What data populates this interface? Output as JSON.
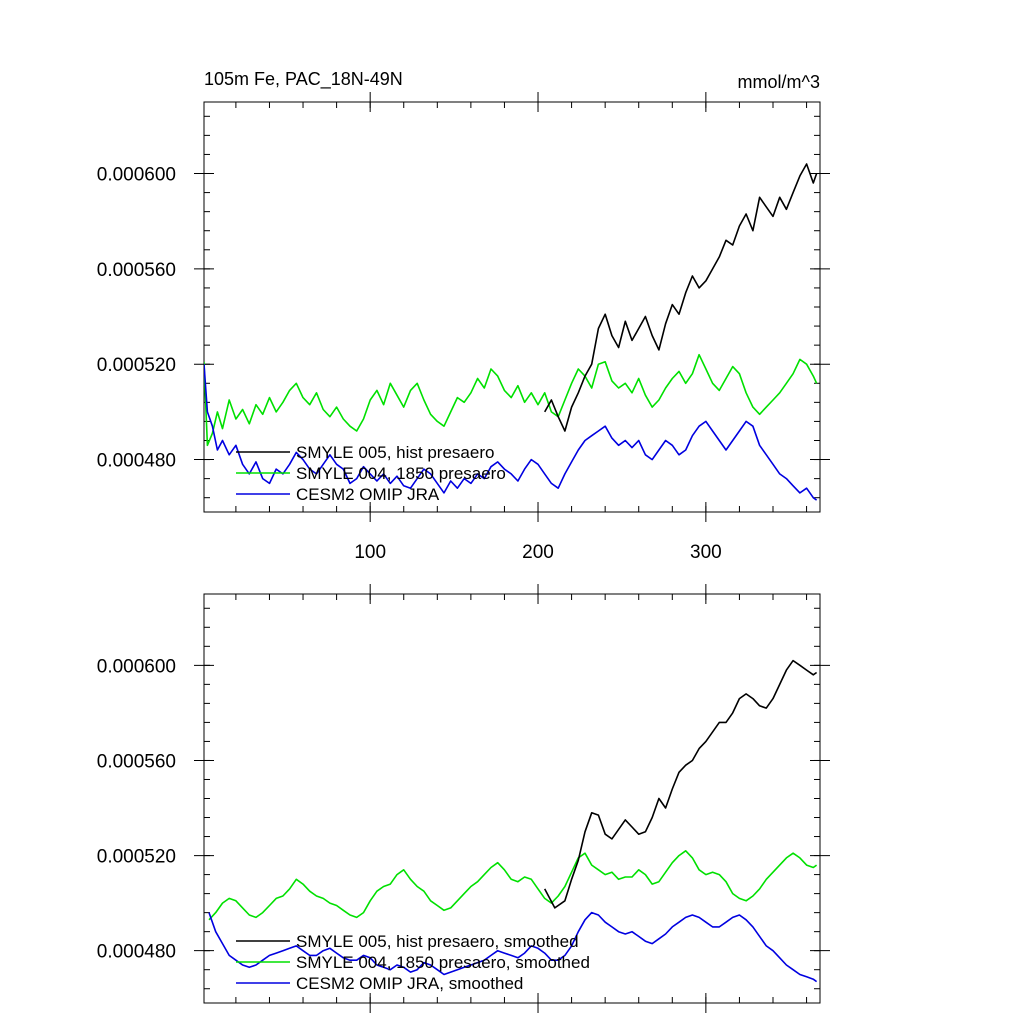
{
  "chart_data": [
    {
      "type": "line",
      "title": "105m Fe, PAC_18N-49N",
      "units": "mmol/m^3",
      "xlim": [
        1,
        368
      ],
      "ylim": [
        0.000458,
        0.00063
      ],
      "xticks": [
        100,
        200,
        300
      ],
      "xtick_labels": [
        "100",
        "200",
        "300"
      ],
      "yticks": [
        0.00048,
        0.00052,
        0.00056,
        0.0006
      ],
      "ytick_labels": [
        "0.000480",
        "0.000520",
        "0.000560",
        "0.000600"
      ],
      "legend_placement": "bottom-left",
      "series": [
        {
          "name": "SMYLE 005, hist presaero",
          "color": "#000000",
          "x": [
            204,
            208,
            212,
            216,
            220,
            224,
            228,
            232,
            236,
            240,
            244,
            248,
            252,
            256,
            260,
            264,
            268,
            272,
            276,
            280,
            284,
            288,
            292,
            296,
            300,
            304,
            308,
            312,
            316,
            320,
            324,
            328,
            332,
            336,
            340,
            344,
            348,
            352,
            356,
            360,
            364,
            366
          ],
          "values": [
            0.0005,
            0.000505,
            0.000498,
            0.000492,
            0.000502,
            0.000508,
            0.000515,
            0.00052,
            0.000535,
            0.000541,
            0.000532,
            0.000527,
            0.000538,
            0.00053,
            0.000535,
            0.00054,
            0.000532,
            0.000526,
            0.000537,
            0.000545,
            0.000541,
            0.00055,
            0.000557,
            0.000552,
            0.000555,
            0.00056,
            0.000565,
            0.000572,
            0.00057,
            0.000578,
            0.000583,
            0.000576,
            0.00059,
            0.000586,
            0.000582,
            0.00059,
            0.000585,
            0.000592,
            0.000599,
            0.000604,
            0.000596,
            0.0006
          ]
        },
        {
          "name": "SMYLE 004, 1850 presaero",
          "color": "#00e000",
          "x": [
            1,
            3,
            6,
            9,
            12,
            16,
            20,
            24,
            28,
            32,
            36,
            40,
            44,
            48,
            52,
            56,
            60,
            64,
            68,
            72,
            76,
            80,
            84,
            88,
            92,
            96,
            100,
            104,
            108,
            112,
            116,
            120,
            124,
            128,
            132,
            136,
            140,
            144,
            148,
            152,
            156,
            160,
            164,
            168,
            172,
            176,
            180,
            184,
            188,
            192,
            196,
            200,
            204,
            208,
            212,
            216,
            220,
            224,
            228,
            232,
            236,
            240,
            244,
            248,
            252,
            256,
            260,
            264,
            268,
            272,
            276,
            280,
            284,
            288,
            292,
            296,
            300,
            304,
            308,
            312,
            316,
            320,
            324,
            328,
            332,
            336,
            340,
            344,
            348,
            352,
            356,
            360,
            364,
            366
          ],
          "values": [
            0.000521,
            0.000486,
            0.000491,
            0.0005,
            0.000493,
            0.000505,
            0.000497,
            0.000501,
            0.000495,
            0.000503,
            0.000499,
            0.000506,
            0.0005,
            0.000504,
            0.000509,
            0.000512,
            0.000506,
            0.000503,
            0.000508,
            0.000501,
            0.000498,
            0.000502,
            0.000497,
            0.000494,
            0.000492,
            0.000497,
            0.000505,
            0.000509,
            0.000503,
            0.000512,
            0.000507,
            0.000502,
            0.000509,
            0.000512,
            0.000505,
            0.000499,
            0.000496,
            0.000494,
            0.0005,
            0.000506,
            0.000504,
            0.000508,
            0.000514,
            0.00051,
            0.000518,
            0.000515,
            0.000509,
            0.000506,
            0.000511,
            0.000504,
            0.000508,
            0.000503,
            0.000508,
            0.0005,
            0.000498,
            0.000505,
            0.000512,
            0.000518,
            0.000515,
            0.00051,
            0.00052,
            0.000521,
            0.000513,
            0.00051,
            0.000512,
            0.000508,
            0.000514,
            0.000507,
            0.000502,
            0.000505,
            0.00051,
            0.000514,
            0.000517,
            0.000512,
            0.000516,
            0.000524,
            0.000518,
            0.000512,
            0.000509,
            0.000514,
            0.000519,
            0.000516,
            0.000508,
            0.000502,
            0.000499,
            0.000502,
            0.000505,
            0.000508,
            0.000512,
            0.000516,
            0.000522,
            0.00052,
            0.000515,
            0.000512
          ]
        },
        {
          "name": "CESM2 OMIP JRA",
          "color": "#0000e0",
          "x": [
            1,
            3,
            6,
            9,
            12,
            16,
            20,
            24,
            28,
            32,
            36,
            40,
            44,
            48,
            52,
            56,
            60,
            64,
            68,
            72,
            76,
            80,
            84,
            88,
            92,
            96,
            100,
            104,
            108,
            112,
            116,
            120,
            124,
            128,
            132,
            136,
            140,
            144,
            148,
            152,
            156,
            160,
            164,
            168,
            172,
            176,
            180,
            184,
            188,
            192,
            196,
            200,
            204,
            208,
            212,
            216,
            220,
            224,
            228,
            232,
            236,
            240,
            244,
            248,
            252,
            256,
            260,
            264,
            268,
            272,
            276,
            280,
            284,
            288,
            292,
            296,
            300,
            304,
            308,
            312,
            316,
            320,
            324,
            328,
            332,
            336,
            340,
            344,
            348,
            352,
            356,
            360,
            364,
            366
          ],
          "values": [
            0.00052,
            0.0005,
            0.000494,
            0.000484,
            0.000488,
            0.000482,
            0.000486,
            0.000478,
            0.000474,
            0.000479,
            0.000472,
            0.00047,
            0.000476,
            0.000474,
            0.000478,
            0.000483,
            0.00048,
            0.000476,
            0.000474,
            0.000478,
            0.000482,
            0.000478,
            0.000476,
            0.00047,
            0.000472,
            0.000477,
            0.000474,
            0.000471,
            0.000474,
            0.00047,
            0.000473,
            0.000469,
            0.000468,
            0.000472,
            0.000476,
            0.000474,
            0.00047,
            0.000466,
            0.000471,
            0.000468,
            0.000472,
            0.00047,
            0.000474,
            0.000472,
            0.000477,
            0.000479,
            0.000476,
            0.000474,
            0.000471,
            0.000476,
            0.00048,
            0.000478,
            0.000474,
            0.00047,
            0.000468,
            0.000474,
            0.000479,
            0.000484,
            0.000488,
            0.00049,
            0.000492,
            0.000494,
            0.000489,
            0.000486,
            0.000488,
            0.000485,
            0.000488,
            0.000482,
            0.00048,
            0.000484,
            0.000488,
            0.000486,
            0.000482,
            0.000484,
            0.00049,
            0.000494,
            0.000496,
            0.000492,
            0.000488,
            0.000484,
            0.000488,
            0.000492,
            0.000496,
            0.000494,
            0.000486,
            0.000482,
            0.000478,
            0.000474,
            0.000472,
            0.000469,
            0.000466,
            0.000468,
            0.000464,
            0.000463
          ]
        }
      ]
    },
    {
      "type": "line",
      "title": "",
      "units": "",
      "xlim": [
        1,
        368
      ],
      "ylim": [
        0.000458,
        0.00063
      ],
      "xticks": [
        100,
        200,
        300
      ],
      "xtick_labels": [],
      "yticks": [
        0.00048,
        0.00052,
        0.00056,
        0.0006
      ],
      "ytick_labels": [
        "0.000480",
        "0.000520",
        "0.000560",
        "0.000600"
      ],
      "legend_placement": "bottom-left",
      "series": [
        {
          "name": "SMYLE 005, hist presaero, smoothed",
          "color": "#000000",
          "x": [
            204,
            210,
            216,
            220,
            224,
            228,
            232,
            236,
            240,
            244,
            248,
            252,
            256,
            260,
            264,
            268,
            272,
            276,
            280,
            284,
            288,
            292,
            296,
            300,
            304,
            308,
            312,
            316,
            320,
            324,
            328,
            332,
            336,
            340,
            344,
            348,
            352,
            356,
            360,
            364,
            366
          ],
          "values": [
            0.000506,
            0.000498,
            0.000501,
            0.00051,
            0.000518,
            0.00053,
            0.000538,
            0.000537,
            0.000529,
            0.000527,
            0.000531,
            0.000535,
            0.000532,
            0.000529,
            0.00053,
            0.000536,
            0.000544,
            0.00054,
            0.000548,
            0.000555,
            0.000558,
            0.00056,
            0.000565,
            0.000568,
            0.000572,
            0.000576,
            0.000576,
            0.00058,
            0.000586,
            0.000588,
            0.000586,
            0.000583,
            0.000582,
            0.000586,
            0.000592,
            0.000598,
            0.000602,
            0.0006,
            0.000598,
            0.000596,
            0.000597
          ]
        },
        {
          "name": "SMYLE 004, 1850 presaero, smoothed",
          "color": "#00e000",
          "x": [
            4,
            8,
            12,
            16,
            20,
            24,
            28,
            32,
            36,
            40,
            44,
            48,
            52,
            56,
            60,
            64,
            68,
            72,
            76,
            80,
            84,
            88,
            92,
            96,
            100,
            104,
            108,
            112,
            116,
            120,
            124,
            128,
            132,
            136,
            140,
            144,
            148,
            152,
            156,
            160,
            164,
            168,
            172,
            176,
            180,
            184,
            188,
            192,
            196,
            200,
            204,
            208,
            212,
            216,
            220,
            224,
            228,
            232,
            236,
            240,
            244,
            248,
            252,
            256,
            260,
            264,
            268,
            272,
            276,
            280,
            284,
            288,
            292,
            296,
            300,
            304,
            308,
            312,
            316,
            320,
            324,
            328,
            332,
            336,
            340,
            344,
            348,
            352,
            356,
            360,
            364,
            366
          ],
          "values": [
            0.000493,
            0.000496,
            0.0005,
            0.000502,
            0.000501,
            0.000498,
            0.000495,
            0.000494,
            0.000496,
            0.000499,
            0.000502,
            0.000503,
            0.000506,
            0.00051,
            0.000508,
            0.000505,
            0.000503,
            0.000502,
            0.0005,
            0.000499,
            0.000497,
            0.000495,
            0.000494,
            0.000496,
            0.000501,
            0.000505,
            0.000507,
            0.000508,
            0.000512,
            0.000514,
            0.00051,
            0.000507,
            0.000505,
            0.000501,
            0.000499,
            0.000497,
            0.000498,
            0.000501,
            0.000504,
            0.000507,
            0.000509,
            0.000512,
            0.000515,
            0.000517,
            0.000514,
            0.00051,
            0.000509,
            0.000511,
            0.00051,
            0.000506,
            0.000502,
            0.0005,
            0.000503,
            0.000507,
            0.000513,
            0.000519,
            0.000521,
            0.000516,
            0.000514,
            0.000512,
            0.000513,
            0.00051,
            0.000511,
            0.000511,
            0.000514,
            0.000512,
            0.000508,
            0.000509,
            0.000513,
            0.000517,
            0.00052,
            0.000522,
            0.000519,
            0.000514,
            0.000512,
            0.000513,
            0.000512,
            0.000509,
            0.000504,
            0.000502,
            0.000501,
            0.000503,
            0.000506,
            0.00051,
            0.000513,
            0.000516,
            0.000519,
            0.000521,
            0.000519,
            0.000516,
            0.000515,
            0.000516
          ]
        },
        {
          "name": "CESM2 OMIP JRA, smoothed",
          "color": "#0000e0",
          "x": [
            4,
            8,
            12,
            16,
            20,
            24,
            28,
            32,
            36,
            40,
            44,
            48,
            52,
            56,
            60,
            64,
            68,
            72,
            76,
            80,
            84,
            88,
            92,
            96,
            100,
            104,
            108,
            112,
            116,
            120,
            124,
            128,
            132,
            136,
            140,
            144,
            148,
            152,
            156,
            160,
            164,
            168,
            172,
            176,
            180,
            184,
            188,
            192,
            196,
            200,
            204,
            208,
            212,
            216,
            220,
            224,
            228,
            232,
            236,
            240,
            244,
            248,
            252,
            256,
            260,
            264,
            268,
            272,
            276,
            280,
            284,
            288,
            292,
            296,
            300,
            304,
            308,
            312,
            316,
            320,
            324,
            328,
            332,
            336,
            340,
            344,
            348,
            352,
            356,
            360,
            364,
            366
          ],
          "values": [
            0.000496,
            0.000488,
            0.000483,
            0.000478,
            0.000476,
            0.000474,
            0.000473,
            0.000474,
            0.000476,
            0.000478,
            0.000479,
            0.00048,
            0.000481,
            0.000482,
            0.00048,
            0.000478,
            0.000478,
            0.00048,
            0.000481,
            0.000479,
            0.000477,
            0.000476,
            0.000476,
            0.000478,
            0.000477,
            0.000474,
            0.000473,
            0.000472,
            0.000474,
            0.000473,
            0.000471,
            0.000472,
            0.000475,
            0.000474,
            0.000472,
            0.00047,
            0.000471,
            0.000472,
            0.000473,
            0.000474,
            0.000475,
            0.000476,
            0.000478,
            0.00048,
            0.000479,
            0.000478,
            0.000477,
            0.000479,
            0.000482,
            0.000481,
            0.000479,
            0.000476,
            0.000476,
            0.000478,
            0.000482,
            0.000488,
            0.000493,
            0.000496,
            0.000495,
            0.000492,
            0.00049,
            0.000488,
            0.000487,
            0.000488,
            0.000486,
            0.000484,
            0.000483,
            0.000485,
            0.000487,
            0.00049,
            0.000492,
            0.000494,
            0.000495,
            0.000494,
            0.000492,
            0.00049,
            0.00049,
            0.000492,
            0.000494,
            0.000495,
            0.000493,
            0.00049,
            0.000486,
            0.000482,
            0.00048,
            0.000477,
            0.000474,
            0.000472,
            0.00047,
            0.000469,
            0.000468,
            0.000467
          ]
        }
      ]
    }
  ]
}
